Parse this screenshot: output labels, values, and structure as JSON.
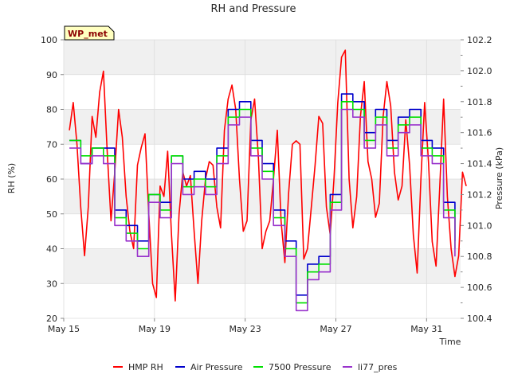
{
  "chart_data": {
    "type": "line",
    "title": "RH and Pressure",
    "xlabel": "Time",
    "ylabel_left": "RH (%)",
    "ylabel_right": "Pressure (kPa)",
    "badge": "WP_met",
    "xlim": [
      "2023-05-15",
      "2023-06-01T12:00"
    ],
    "ylim_left": [
      20,
      100
    ],
    "ylim_right": [
      100.4,
      102.2
    ],
    "x_ticks": [
      {
        "date": "2023-05-15",
        "label": "May 15"
      },
      {
        "date": "2023-05-19",
        "label": "May 19"
      },
      {
        "date": "2023-05-23",
        "label": "May 23"
      },
      {
        "date": "2023-05-27",
        "label": "May 27"
      },
      {
        "date": "2023-05-31",
        "label": "May 31"
      }
    ],
    "y_ticks_left": [
      "20",
      "30",
      "40",
      "50",
      "60",
      "70",
      "80",
      "90",
      "100"
    ],
    "y_ticks_right": [
      "100.4",
      "100.6",
      "100.8",
      "101.0",
      "101.2",
      "101.4",
      "101.6",
      "101.8",
      "102.0",
      "102.2"
    ],
    "grid": true,
    "legend_position": "bottom",
    "series": [
      {
        "name": "HMP RH",
        "axis": "left",
        "color": "#ff0000",
        "points": [
          [
            "2023-05-15T06:00",
            74
          ],
          [
            "2023-05-15T10:00",
            82
          ],
          [
            "2023-05-15T14:00",
            70
          ],
          [
            "2023-05-15T18:00",
            52
          ],
          [
            "2023-05-15T22:00",
            38
          ],
          [
            "2023-05-16T02:00",
            52
          ],
          [
            "2023-05-16T06:00",
            78
          ],
          [
            "2023-05-16T10:00",
            72
          ],
          [
            "2023-05-16T14:00",
            85
          ],
          [
            "2023-05-16T18:00",
            91
          ],
          [
            "2023-05-16T22:00",
            68
          ],
          [
            "2023-05-17T02:00",
            48
          ],
          [
            "2023-05-17T06:00",
            62
          ],
          [
            "2023-05-17T10:00",
            80
          ],
          [
            "2023-05-17T14:00",
            72
          ],
          [
            "2023-05-17T18:00",
            55
          ],
          [
            "2023-05-17T22:00",
            45
          ],
          [
            "2023-05-18T02:00",
            40
          ],
          [
            "2023-05-18T06:00",
            64
          ],
          [
            "2023-05-18T10:00",
            69
          ],
          [
            "2023-05-18T14:00",
            73
          ],
          [
            "2023-05-18T18:00",
            50
          ],
          [
            "2023-05-18T22:00",
            30
          ],
          [
            "2023-05-19T02:00",
            26
          ],
          [
            "2023-05-19T06:00",
            58
          ],
          [
            "2023-05-19T10:00",
            55
          ],
          [
            "2023-05-19T14:00",
            68
          ],
          [
            "2023-05-19T18:00",
            44
          ],
          [
            "2023-05-19T22:00",
            25
          ],
          [
            "2023-05-20T02:00",
            50
          ],
          [
            "2023-05-20T06:00",
            62
          ],
          [
            "2023-05-20T10:00",
            58
          ],
          [
            "2023-05-20T14:00",
            61
          ],
          [
            "2023-05-20T18:00",
            45
          ],
          [
            "2023-05-20T22:00",
            30
          ],
          [
            "2023-05-21T02:00",
            48
          ],
          [
            "2023-05-21T06:00",
            60
          ],
          [
            "2023-05-21T10:00",
            65
          ],
          [
            "2023-05-21T14:00",
            64
          ],
          [
            "2023-05-21T18:00",
            52
          ],
          [
            "2023-05-21T22:00",
            46
          ],
          [
            "2023-05-22T02:00",
            74
          ],
          [
            "2023-05-22T06:00",
            83
          ],
          [
            "2023-05-22T10:00",
            87
          ],
          [
            "2023-05-22T14:00",
            80
          ],
          [
            "2023-05-22T18:00",
            60
          ],
          [
            "2023-05-22T22:00",
            45
          ],
          [
            "2023-05-23T02:00",
            48
          ],
          [
            "2023-05-23T06:00",
            77
          ],
          [
            "2023-05-23T10:00",
            83
          ],
          [
            "2023-05-23T14:00",
            66
          ],
          [
            "2023-05-23T18:00",
            40
          ],
          [
            "2023-05-23T22:00",
            45
          ],
          [
            "2023-05-24T02:00",
            48
          ],
          [
            "2023-05-24T06:00",
            60
          ],
          [
            "2023-05-24T10:00",
            74
          ],
          [
            "2023-05-24T14:00",
            48
          ],
          [
            "2023-05-24T18:00",
            36
          ],
          [
            "2023-05-24T22:00",
            56
          ],
          [
            "2023-05-25T02:00",
            70
          ],
          [
            "2023-05-25T06:00",
            71
          ],
          [
            "2023-05-25T10:00",
            70
          ],
          [
            "2023-05-25T14:00",
            37
          ],
          [
            "2023-05-25T18:00",
            40
          ],
          [
            "2023-05-25T22:00",
            52
          ],
          [
            "2023-05-26T02:00",
            64
          ],
          [
            "2023-05-26T06:00",
            78
          ],
          [
            "2023-05-26T10:00",
            76
          ],
          [
            "2023-05-26T14:00",
            52
          ],
          [
            "2023-05-26T18:00",
            44
          ],
          [
            "2023-05-26T22:00",
            60
          ],
          [
            "2023-05-27T02:00",
            82
          ],
          [
            "2023-05-27T06:00",
            95
          ],
          [
            "2023-05-27T10:00",
            97
          ],
          [
            "2023-05-27T14:00",
            60
          ],
          [
            "2023-05-27T18:00",
            46
          ],
          [
            "2023-05-27T22:00",
            55
          ],
          [
            "2023-05-28T02:00",
            78
          ],
          [
            "2023-05-28T06:00",
            88
          ],
          [
            "2023-05-28T10:00",
            65
          ],
          [
            "2023-05-28T14:00",
            60
          ],
          [
            "2023-05-28T18:00",
            49
          ],
          [
            "2023-05-28T22:00",
            53
          ],
          [
            "2023-05-29T02:00",
            78
          ],
          [
            "2023-05-29T06:00",
            88
          ],
          [
            "2023-05-29T10:00",
            81
          ],
          [
            "2023-05-29T14:00",
            62
          ],
          [
            "2023-05-29T18:00",
            54
          ],
          [
            "2023-05-29T22:00",
            58
          ],
          [
            "2023-05-30T02:00",
            77
          ],
          [
            "2023-05-30T06:00",
            64
          ],
          [
            "2023-05-30T10:00",
            44
          ],
          [
            "2023-05-30T14:00",
            33
          ],
          [
            "2023-05-30T18:00",
            60
          ],
          [
            "2023-05-30T22:00",
            82
          ],
          [
            "2023-05-31T02:00",
            65
          ],
          [
            "2023-05-31T06:00",
            42
          ],
          [
            "2023-05-31T10:00",
            35
          ],
          [
            "2023-05-31T14:00",
            58
          ],
          [
            "2023-05-31T18:00",
            83
          ],
          [
            "2023-05-31T22:00",
            55
          ],
          [
            "2023-06-01T02:00",
            40
          ],
          [
            "2023-06-01T06:00",
            32
          ],
          [
            "2023-06-01T10:00",
            38
          ],
          [
            "2023-06-01T14:00",
            62
          ],
          [
            "2023-06-01T18:00",
            58
          ]
        ]
      },
      {
        "name": "Air Pressure",
        "axis": "right",
        "color": "#0000cc",
        "points": [
          [
            "2023-05-15T06:00",
            101.55
          ],
          [
            "2023-05-15T18:00",
            101.4
          ],
          [
            "2023-05-16T06:00",
            101.5
          ],
          [
            "2023-05-16T18:00",
            101.5
          ],
          [
            "2023-05-17T06:00",
            101.1
          ],
          [
            "2023-05-17T18:00",
            101.0
          ],
          [
            "2023-05-18T06:00",
            100.9
          ],
          [
            "2023-05-18T18:00",
            101.2
          ],
          [
            "2023-05-19T06:00",
            101.15
          ],
          [
            "2023-05-19T18:00",
            101.45
          ],
          [
            "2023-05-20T06:00",
            101.3
          ],
          [
            "2023-05-20T18:00",
            101.35
          ],
          [
            "2023-05-21T06:00",
            101.3
          ],
          [
            "2023-05-21T18:00",
            101.5
          ],
          [
            "2023-05-22T06:00",
            101.75
          ],
          [
            "2023-05-22T18:00",
            101.8
          ],
          [
            "2023-05-23T06:00",
            101.55
          ],
          [
            "2023-05-23T18:00",
            101.4
          ],
          [
            "2023-05-24T06:00",
            101.1
          ],
          [
            "2023-05-24T18:00",
            100.9
          ],
          [
            "2023-05-25T06:00",
            100.55
          ],
          [
            "2023-05-25T18:00",
            100.75
          ],
          [
            "2023-05-26T06:00",
            100.8
          ],
          [
            "2023-05-26T18:00",
            101.2
          ],
          [
            "2023-05-27T06:00",
            101.85
          ],
          [
            "2023-05-27T18:00",
            101.8
          ],
          [
            "2023-05-28T06:00",
            101.6
          ],
          [
            "2023-05-28T18:00",
            101.75
          ],
          [
            "2023-05-29T06:00",
            101.55
          ],
          [
            "2023-05-29T18:00",
            101.7
          ],
          [
            "2023-05-30T06:00",
            101.75
          ],
          [
            "2023-05-30T18:00",
            101.55
          ],
          [
            "2023-05-31T06:00",
            101.5
          ],
          [
            "2023-05-31T18:00",
            101.15
          ],
          [
            "2023-06-01T06:00",
            100.9
          ]
        ]
      },
      {
        "name": "7500 Pressure",
        "axis": "right",
        "color": "#00e000",
        "points": [
          [
            "2023-05-15T06:00",
            101.55
          ],
          [
            "2023-05-15T18:00",
            101.45
          ],
          [
            "2023-05-16T06:00",
            101.5
          ],
          [
            "2023-05-16T18:00",
            101.45
          ],
          [
            "2023-05-17T06:00",
            101.05
          ],
          [
            "2023-05-17T18:00",
            100.95
          ],
          [
            "2023-05-18T06:00",
            100.85
          ],
          [
            "2023-05-18T18:00",
            101.2
          ],
          [
            "2023-05-19T06:00",
            101.1
          ],
          [
            "2023-05-19T18:00",
            101.45
          ],
          [
            "2023-05-20T06:00",
            101.25
          ],
          [
            "2023-05-20T18:00",
            101.3
          ],
          [
            "2023-05-21T06:00",
            101.25
          ],
          [
            "2023-05-21T18:00",
            101.45
          ],
          [
            "2023-05-22T06:00",
            101.7
          ],
          [
            "2023-05-22T18:00",
            101.75
          ],
          [
            "2023-05-23T06:00",
            101.5
          ],
          [
            "2023-05-23T18:00",
            101.35
          ],
          [
            "2023-05-24T06:00",
            101.05
          ],
          [
            "2023-05-24T18:00",
            100.85
          ],
          [
            "2023-05-25T06:00",
            100.5
          ],
          [
            "2023-05-25T18:00",
            100.7
          ],
          [
            "2023-05-26T06:00",
            100.75
          ],
          [
            "2023-05-26T18:00",
            101.15
          ],
          [
            "2023-05-27T06:00",
            101.8
          ],
          [
            "2023-05-27T18:00",
            101.75
          ],
          [
            "2023-05-28T06:00",
            101.55
          ],
          [
            "2023-05-28T18:00",
            101.7
          ],
          [
            "2023-05-29T06:00",
            101.5
          ],
          [
            "2023-05-29T18:00",
            101.65
          ],
          [
            "2023-05-30T06:00",
            101.7
          ],
          [
            "2023-05-30T18:00",
            101.5
          ],
          [
            "2023-05-31T06:00",
            101.45
          ],
          [
            "2023-05-31T18:00",
            101.1
          ],
          [
            "2023-06-01T06:00",
            100.85
          ]
        ]
      },
      {
        "name": "li77_pres",
        "axis": "right",
        "color": "#9933cc",
        "points": [
          [
            "2023-05-15T06:00",
            101.5
          ],
          [
            "2023-05-15T18:00",
            101.4
          ],
          [
            "2023-05-16T06:00",
            101.45
          ],
          [
            "2023-05-16T18:00",
            101.4
          ],
          [
            "2023-05-17T06:00",
            101.0
          ],
          [
            "2023-05-17T18:00",
            100.9
          ],
          [
            "2023-05-18T06:00",
            100.8
          ],
          [
            "2023-05-18T18:00",
            101.15
          ],
          [
            "2023-05-19T06:00",
            101.05
          ],
          [
            "2023-05-19T18:00",
            101.4
          ],
          [
            "2023-05-20T06:00",
            101.2
          ],
          [
            "2023-05-20T18:00",
            101.25
          ],
          [
            "2023-05-21T06:00",
            101.2
          ],
          [
            "2023-05-21T18:00",
            101.4
          ],
          [
            "2023-05-22T06:00",
            101.65
          ],
          [
            "2023-05-22T18:00",
            101.7
          ],
          [
            "2023-05-23T06:00",
            101.45
          ],
          [
            "2023-05-23T18:00",
            101.3
          ],
          [
            "2023-05-24T06:00",
            101.0
          ],
          [
            "2023-05-24T18:00",
            100.8
          ],
          [
            "2023-05-25T06:00",
            100.45
          ],
          [
            "2023-05-25T18:00",
            100.65
          ],
          [
            "2023-05-26T06:00",
            100.7
          ],
          [
            "2023-05-26T18:00",
            101.1
          ],
          [
            "2023-05-27T06:00",
            101.75
          ],
          [
            "2023-05-27T18:00",
            101.7
          ],
          [
            "2023-05-28T06:00",
            101.5
          ],
          [
            "2023-05-28T18:00",
            101.65
          ],
          [
            "2023-05-29T06:00",
            101.45
          ],
          [
            "2023-05-29T18:00",
            101.6
          ],
          [
            "2023-05-30T06:00",
            101.65
          ],
          [
            "2023-05-30T18:00",
            101.45
          ],
          [
            "2023-05-31T06:00",
            101.4
          ],
          [
            "2023-05-31T18:00",
            101.05
          ],
          [
            "2023-06-01T06:00",
            100.8
          ]
        ]
      }
    ]
  }
}
